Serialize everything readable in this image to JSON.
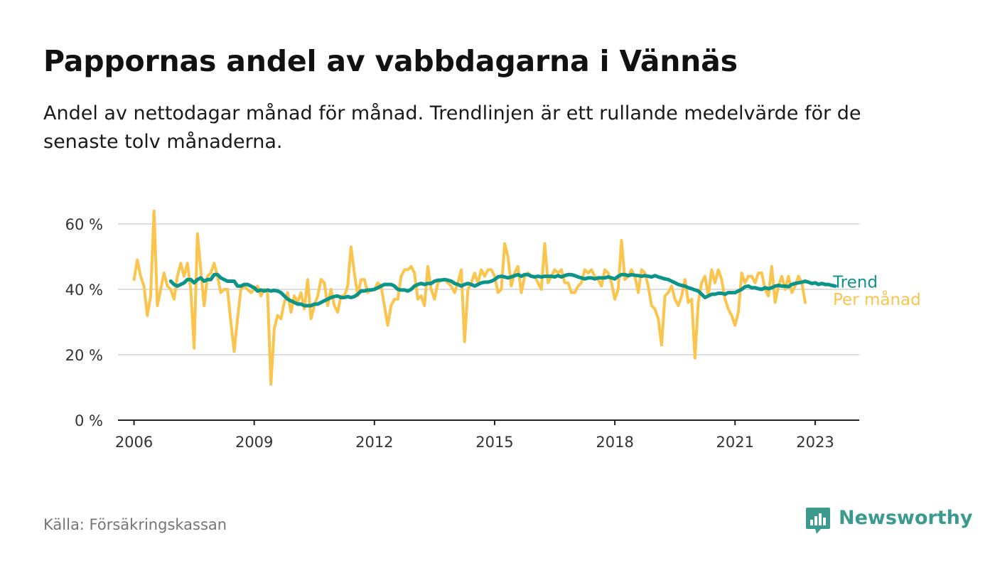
{
  "title": "Pappornas andel av vabbdagarna i Vännäs",
  "subtitle": "Andel av nettodagar månad för månad. Trendlinjen är ett rullande medelvärde för de senaste tolv månaderna.",
  "source": "Källa: Försäkringskassan",
  "logo": {
    "text": "Newsworthy",
    "icon": "newsworthy-logo-icon",
    "color": "#3a9a8e"
  },
  "colors": {
    "monthly": "#fbc44c",
    "trend": "#0d9488",
    "grid": "#dddddd",
    "axis": "#222222"
  },
  "chart_data": {
    "type": "line",
    "title": "Pappornas andel av vabbdagarna i Vännäs",
    "xlabel": "",
    "ylabel": "",
    "x_start": "2006-01",
    "x_step": "month",
    "xlim": [
      2005.6,
      2024.1
    ],
    "ylim": [
      0,
      60
    ],
    "yticks": [
      0,
      20,
      40,
      60
    ],
    "ytick_labels": [
      "0 %",
      "20 %",
      "40 %",
      "60 %"
    ],
    "xticks": [
      2006,
      2009,
      2012,
      2015,
      2018,
      2021,
      2023
    ],
    "xtick_labels": [
      "2006",
      "2009",
      "2012",
      "2015",
      "2018",
      "2021",
      "2023"
    ],
    "grid": true,
    "legend": "inline-right",
    "series": [
      {
        "name": "Per månad",
        "color": "#fbc44c",
        "values": [
          43,
          49,
          44,
          41,
          32,
          38,
          64,
          35,
          40,
          45,
          41,
          40,
          37,
          44,
          48,
          44,
          48,
          40,
          22,
          57,
          46,
          35,
          44,
          45,
          48,
          44,
          39,
          40,
          40,
          30,
          21,
          31,
          40,
          41,
          40,
          39,
          40,
          41,
          38,
          40,
          39,
          11,
          28,
          32,
          31,
          36,
          39,
          33,
          38,
          36,
          39,
          34,
          43,
          31,
          35,
          38,
          43,
          42,
          35,
          40,
          35,
          33,
          38,
          38,
          41,
          53,
          45,
          38,
          43,
          43,
          39,
          40,
          40,
          42,
          41,
          35,
          29,
          35,
          37,
          37,
          44,
          46,
          46,
          47,
          45,
          37,
          38,
          35,
          47,
          40,
          37,
          42,
          43,
          43,
          42,
          41,
          39,
          42,
          46,
          24,
          40,
          42,
          45,
          42,
          46,
          44,
          46,
          46,
          44,
          39,
          40,
          54,
          50,
          41,
          45,
          47,
          39,
          44,
          45,
          44,
          44,
          42,
          40,
          54,
          42,
          44,
          46,
          45,
          46,
          42,
          42,
          39,
          39,
          41,
          42,
          46,
          45,
          46,
          44,
          43,
          41,
          46,
          45,
          42,
          37,
          40,
          55,
          43,
          44,
          46,
          44,
          39,
          46,
          45,
          41,
          35,
          34,
          31,
          23,
          38,
          39,
          41,
          37,
          35,
          38,
          43,
          36,
          37,
          19,
          36,
          42,
          44,
          38,
          46,
          42,
          46,
          43,
          37,
          34,
          32,
          29,
          33,
          45,
          42,
          44,
          44,
          42,
          45,
          45,
          40,
          38,
          47,
          36,
          41,
          44,
          40,
          44,
          39,
          41,
          44,
          42,
          36
        ],
        "label_value": 36.5
      },
      {
        "name": "Trend",
        "color": "#0d9488",
        "x_start": "2006-12",
        "values": [
          42.5,
          41.5,
          41,
          41.5,
          42,
          43,
          43,
          42,
          43,
          43.5,
          42.5,
          43,
          43,
          44.5,
          44.5,
          43.5,
          43,
          42.5,
          42.5,
          42.5,
          41,
          41,
          41.5,
          41.5,
          41,
          40.5,
          39.5,
          39.8,
          39.5,
          39.8,
          39.5,
          39.7,
          39.5,
          39,
          38,
          37,
          36.5,
          36,
          35.5,
          35.5,
          35,
          35,
          35,
          35.5,
          35.5,
          36,
          36.5,
          37,
          37.5,
          37.8,
          38,
          37.5,
          37.5,
          37.8,
          37.5,
          37.8,
          38.5,
          39.5,
          39.5,
          39.8,
          39.8,
          40,
          40.5,
          41,
          41.5,
          41.5,
          41.5,
          41,
          40,
          39.8,
          39.8,
          39.5,
          40,
          41,
          41.5,
          41.8,
          41.5,
          41.8,
          41.8,
          42.5,
          42.8,
          42.8,
          43,
          42.8,
          42.5,
          41.8,
          41.5,
          41,
          41.5,
          41.8,
          41.5,
          41,
          41.5,
          42,
          42.2,
          42.2,
          42.5,
          43,
          43.8,
          44,
          43.8,
          43.5,
          43.8,
          44.2,
          44.5,
          44,
          44.5,
          44.5,
          44,
          43.8,
          44,
          43.8,
          44,
          44,
          44,
          43.8,
          44.2,
          43.8,
          44.2,
          44.5,
          44.5,
          44.2,
          43.8,
          43.5,
          43.2,
          43.5,
          43.5,
          43.2,
          43.5,
          43.5,
          43.5,
          43.8,
          43.5,
          43.2,
          44,
          44.5,
          44.5,
          44.2,
          44.5,
          44.3,
          44.2,
          44,
          44.2,
          44,
          43.8,
          44.2,
          43.8,
          43.5,
          43.2,
          43,
          42.5,
          42,
          41.5,
          41.2,
          41,
          40.5,
          40.2,
          39.8,
          39.5,
          38.5,
          37.5,
          38,
          38.5,
          38.5,
          38.8,
          38.8,
          38.5,
          39,
          39,
          39,
          39.5,
          40,
          40.8,
          41,
          40.5,
          40.5,
          40.2,
          40,
          40.5,
          40.2,
          40.5,
          41,
          41.2,
          41,
          41,
          40.8,
          41.5,
          41.8,
          42,
          42.2,
          42.5,
          42.2,
          41.8,
          42,
          41.5,
          41.8,
          41.5,
          41.5,
          41.2,
          41
        ]
      }
    ]
  }
}
